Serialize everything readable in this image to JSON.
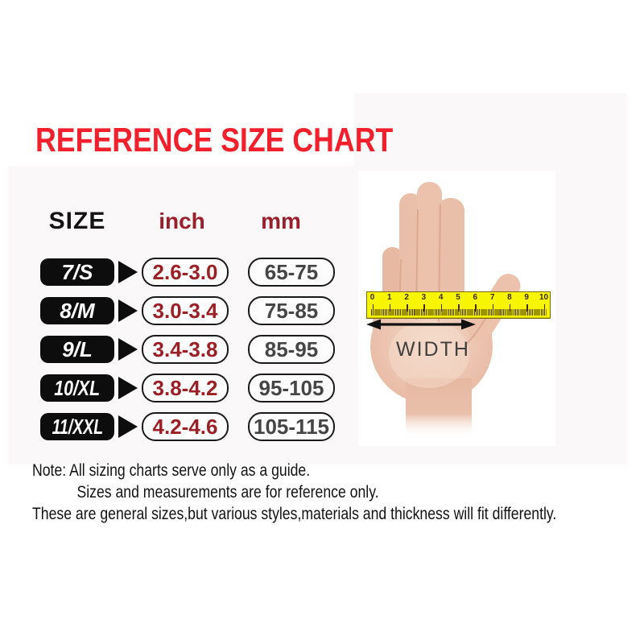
{
  "title": "REFERENCE SIZE CHART",
  "table": {
    "headers": {
      "size": "SIZE",
      "inch": "inch",
      "mm": "mm"
    },
    "rows": [
      {
        "size": "7/S",
        "inch": "2.6-3.0",
        "mm": "65-75"
      },
      {
        "size": "8/M",
        "inch": "3.0-3.4",
        "mm": "75-85"
      },
      {
        "size": "9/L",
        "inch": "3.4-3.8",
        "mm": "85-95"
      },
      {
        "size": "10/XL",
        "inch": "3.8-4.2",
        "mm": "95-105"
      },
      {
        "size": "11/XXL",
        "inch": "4.2-4.6",
        "mm": "105-115"
      }
    ]
  },
  "hand": {
    "width_label": "WIDTH",
    "ruler_numbers": [
      "0",
      "1",
      "2",
      "3",
      "4",
      "5",
      "6",
      "7",
      "8",
      "9",
      "10"
    ]
  },
  "notes": {
    "lines": [
      "Note: All sizing charts serve only as a guide.",
      "Sizes and measurements are for reference only.",
      "These are general sizes,but various styles,materials and thickness will fit differently."
    ]
  },
  "colors": {
    "title_red": "#f2202c",
    "dark_red": "#9b1f2a",
    "mm_gray": "#454545",
    "badge_black": "#0d0d0d",
    "ruler_yellow": "#f8f502",
    "skin": "#e9bda7"
  },
  "chart_data": {
    "type": "table",
    "title": "REFERENCE SIZE CHART",
    "columns": [
      "SIZE",
      "inch",
      "mm"
    ],
    "rows": [
      [
        "7/S",
        "2.6-3.0",
        "65-75"
      ],
      [
        "8/M",
        "3.0-3.4",
        "75-85"
      ],
      [
        "9/L",
        "3.4-3.8",
        "85-95"
      ],
      [
        "10/XL",
        "3.8-4.2",
        "95-105"
      ],
      [
        "11/XXL",
        "4.2-4.6",
        "105-115"
      ]
    ],
    "annotations": [
      "WIDTH measured across palm with ruler 0-10"
    ],
    "ruler_range": [
      0,
      10
    ]
  }
}
